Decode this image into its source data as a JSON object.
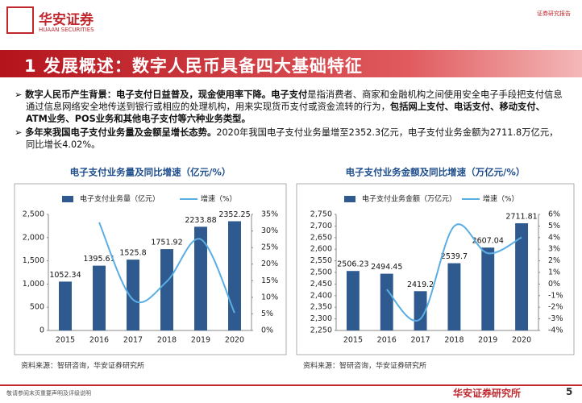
{
  "header": {
    "logo": "华安证券",
    "logo_en": "HUAAN SECURITIES",
    "tag": "证券研究报告",
    "title": "1 发展概述：数字人民币具备四大基础特征"
  },
  "bullets": [
    [
      {
        "text": "数字人民币产生背景：电子支付日益普及，现金使用率下降。",
        "bold": true
      },
      {
        "text": "电子支付",
        "bold": true
      },
      {
        "text": "是指消费者、商家和金融机构之间使用安全电子手段把支付信息通过信息网络安全地传送到银行或相应的处理机构，用来实现货币支付或资金流转的行为，",
        "bold": false
      },
      {
        "text": "包括网上支付、电话支付、移动支付、ATM业务、POS业务和其他电子支付等六种业务类型。",
        "bold": true
      }
    ],
    [
      {
        "text": "多年来我国电子支付业务量及金额呈增长态势。",
        "bold": true
      },
      {
        "text": "2020年我国电子支付业务量增至2352.3亿元，电子支付业务金额为2711.8万亿元，同比增长4.02%。",
        "bold": false
      }
    ]
  ],
  "chart_data": [
    {
      "type": "bar",
      "title": "电子支付业务量及同比增速（亿元/%）",
      "categories": [
        "2015",
        "2016",
        "2017",
        "2018",
        "2019",
        "2020"
      ],
      "legend": "top",
      "series": [
        {
          "name": "电子支付业务量（亿元）",
          "color": "#2f5a8f",
          "values": [
            1052.34,
            1395.61,
            1525.8,
            1751.92,
            2233.88,
            2352.25
          ]
        },
        {
          "name": "增速（%）",
          "color": "#5aaee3",
          "axis": "y2",
          "values": [
            null,
            32.6,
            9.3,
            14.8,
            27.5,
            5.3
          ]
        }
      ],
      "ylim": [
        0,
        2500
      ],
      "yticks": [
        0,
        500,
        {
          "value": 1000,
          "label": "1,000"
        },
        {
          "value": 1500,
          "label": "1,500"
        },
        {
          "value": 2000,
          "label": "2,000"
        },
        {
          "value": 2500,
          "label": "2,500"
        }
      ],
      "y2lim": [
        0,
        35
      ],
      "y2ticks": [
        {
          "value": 0,
          "label": "0%"
        },
        {
          "value": 5,
          "label": "5%"
        },
        {
          "value": 10,
          "label": "10%"
        },
        {
          "value": 15,
          "label": "15%"
        },
        {
          "value": 20,
          "label": "20%"
        },
        {
          "value": 25,
          "label": "25%"
        },
        {
          "value": 30,
          "label": "30%"
        },
        {
          "value": 35,
          "label": "35%"
        }
      ],
      "source": "资料来源：智研咨询，华安证券研究所"
    },
    {
      "type": "bar",
      "title": "电子支付业务金额及同比增速（万亿元/%）",
      "categories": [
        "2015",
        "2016",
        "2017",
        "2018",
        "2019",
        "2020"
      ],
      "legend": "top",
      "series": [
        {
          "name": "电子支付业务金额（万亿元）",
          "color": "#2f5a8f",
          "values": [
            2506.23,
            2494.45,
            2419.2,
            2539.7,
            2607.04,
            2711.81
          ]
        },
        {
          "name": "增速（%）",
          "color": "#5aaee3",
          "axis": "y2",
          "values": [
            null,
            -0.47,
            -3.0,
            4.98,
            2.65,
            4.02
          ]
        }
      ],
      "ylim": [
        2250,
        2750
      ],
      "yticks": [
        {
          "value": 2250,
          "label": "2,250"
        },
        {
          "value": 2300,
          "label": "2,300"
        },
        {
          "value": 2350,
          "label": "2,350"
        },
        {
          "value": 2400,
          "label": "2,400"
        },
        {
          "value": 2450,
          "label": "2,450"
        },
        {
          "value": 2500,
          "label": "2,500"
        },
        {
          "value": 2550,
          "label": "2,550"
        },
        {
          "value": 2600,
          "label": "2,600"
        },
        {
          "value": 2650,
          "label": "2,650"
        },
        {
          "value": 2700,
          "label": "2,700"
        },
        {
          "value": 2750,
          "label": "2,750"
        }
      ],
      "y2lim": [
        -4,
        6
      ],
      "y2ticks": [
        {
          "value": -4,
          "label": "-4%"
        },
        {
          "value": -3,
          "label": "-3%"
        },
        {
          "value": -2,
          "label": "-2%"
        },
        {
          "value": -1,
          "label": "-1%"
        },
        {
          "value": 0,
          "label": "0%"
        },
        {
          "value": 1,
          "label": "1%"
        },
        {
          "value": 2,
          "label": "2%"
        },
        {
          "value": 3,
          "label": "3%"
        },
        {
          "value": 4,
          "label": "4%"
        },
        {
          "value": 5,
          "label": "5%"
        },
        {
          "value": 6,
          "label": "6%"
        }
      ],
      "source": "资料来源：智研咨询，华安证券研究所"
    }
  ],
  "footer": {
    "disclaimer": "敬请参阅末页重要声明及评级说明",
    "brand": "华安证券研究所",
    "page": "5"
  }
}
